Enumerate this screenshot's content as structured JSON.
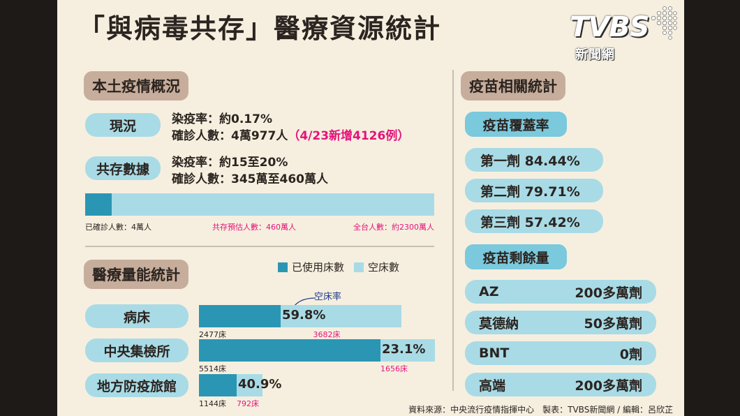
{
  "title": "「與病毒共存」醫療資源統計",
  "logo": {
    "main": "TVBS",
    "sub": "新聞網"
  },
  "local": {
    "header": "本土疫情概況",
    "current": {
      "label": "現況",
      "line1": "染疫率：約0.17%",
      "line2_main": "確診人數：4萬977人",
      "line2_note": "（4/23新增4126例）"
    },
    "coexist": {
      "label": "共存數據",
      "line1": "染疫率：約15至20%",
      "line2": "確診人數：345萬至460萬人"
    },
    "population_bar": {
      "confirmed_fraction": 0.015,
      "label_confirmed": "已確診人數：4萬人",
      "label_estimate": "共存預估人數：460萬人",
      "label_total": "全台人數：約2300萬人"
    }
  },
  "medical": {
    "header": "醫療量能統計",
    "legend": {
      "used": "已使用床數",
      "empty": "空床數"
    },
    "empty_rate_label": "空床率",
    "rows": [
      {
        "label": "病床",
        "used": "2477床",
        "empty": "3682床",
        "rate": "59.8%",
        "empty_fraction": 0.598
      },
      {
        "label": "中央集檢所",
        "used": "5514床",
        "empty": "1656床",
        "rate": "23.1%",
        "empty_fraction": 0.231
      },
      {
        "label": "地方防疫旅館",
        "used": "1144床",
        "empty": "792床",
        "rate": "40.9%",
        "empty_fraction": 0.409
      }
    ]
  },
  "vaccine": {
    "header": "疫苗相關統計",
    "coverage_tag": "疫苗覆蓋率",
    "coverage": [
      "第一劑 84.44%",
      "第二劑 79.71%",
      "第三劑 57.42%"
    ],
    "remaining_tag": "疫苗剩餘量",
    "remaining": [
      {
        "name": "AZ",
        "value": "200多萬劑"
      },
      {
        "name": "莫德納",
        "value": "50多萬劑"
      },
      {
        "name": "BNT",
        "value": "0劑"
      },
      {
        "name": "高端",
        "value": "200多萬劑"
      }
    ]
  },
  "footer": "資料來源：中央流行疫情指揮中心　製表：TVBS新聞網 / 編輯：呂欣芷",
  "colors": {
    "used": "#2b96b4",
    "empty": "#a8dbe6",
    "header": "#c7ad9b",
    "accent": "#e6127b",
    "background": "#f6efdf"
  }
}
